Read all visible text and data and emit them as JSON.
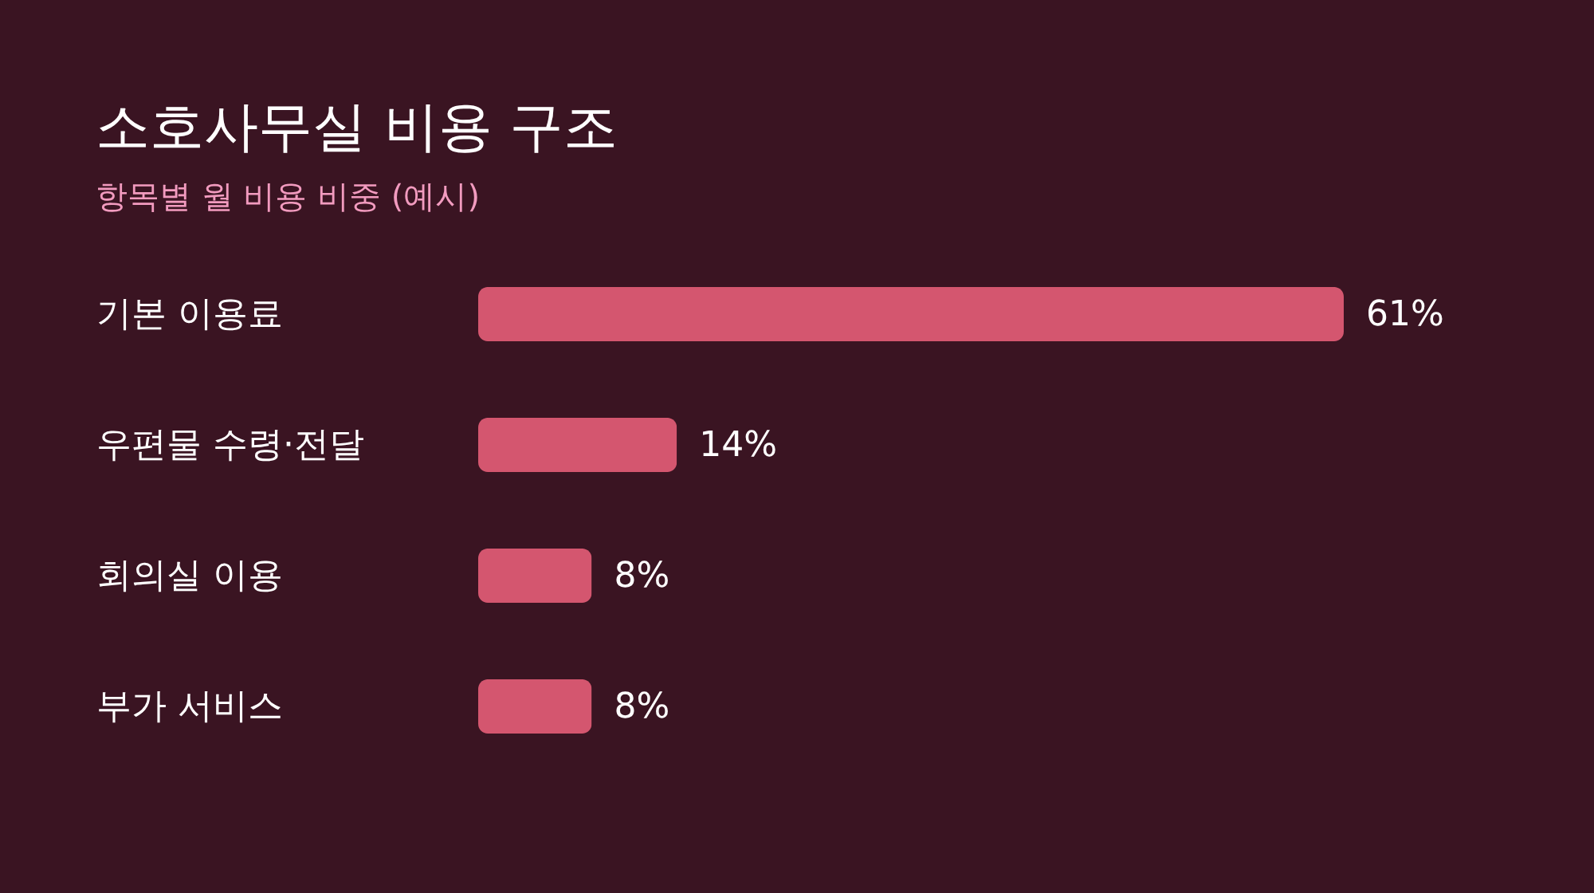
{
  "chart_data": {
    "type": "bar",
    "orientation": "horizontal",
    "title": "소호사무실 비용 구조",
    "subtitle": "항목별 월 비용 비중 (예시)",
    "categories": [
      "기본 이용료",
      "우편물 수령·전달",
      "회의실 이용",
      "부가 서비스"
    ],
    "values": [
      61,
      14,
      8,
      8
    ],
    "value_labels": [
      "61%",
      "14%",
      "8%",
      "8%"
    ],
    "color": "#d4566f",
    "tick_labels": "y"
  }
}
